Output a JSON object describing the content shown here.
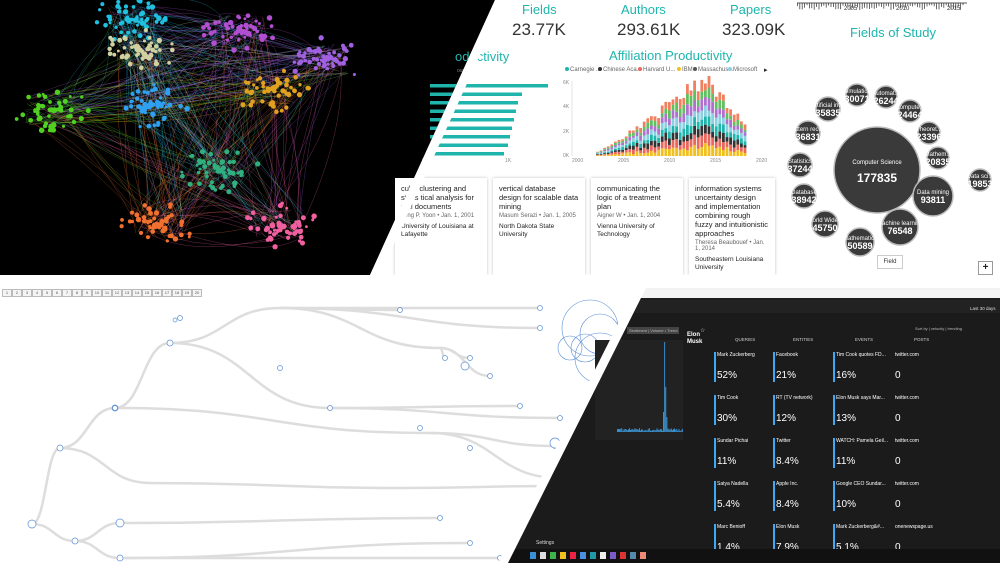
{
  "dashboard": {
    "kpis": [
      {
        "label": "Fields",
        "value": "23.77K"
      },
      {
        "label": "Authors",
        "value": "293.61K"
      },
      {
        "label": "Papers",
        "value": "323.09K"
      }
    ],
    "timeline_ticks": [
      "2005",
      "2010",
      "2015"
    ],
    "author_productivity_title": "oductivity",
    "author_productivity_axis": "ount",
    "author_axis_ticks": [
      "0K",
      "1K"
    ],
    "affiliation_title": "Affiliation Productivity",
    "affiliation_legend": [
      "Carnegie ...",
      "Chinese Aca...",
      "Harvard U...",
      "IBM",
      "Massachus...",
      "Microsoft"
    ],
    "affiliation_y_ticks": [
      "6K",
      "4K",
      "2K",
      "0K"
    ],
    "affiliation_x_ticks": [
      "2000",
      "2005",
      "2010",
      "2015",
      "2020"
    ],
    "fields_title": "Fields of Study",
    "field_label": "Field",
    "plus_label": "+",
    "cards": [
      {
        "title": "cube clustering and statis tical analysis for xml documents",
        "meta": "Jong P. Yoon • Jan. 1, 2001",
        "aff": "University of Louisiana at Lafayette"
      },
      {
        "title": "vertical database design for scalable data mining",
        "meta": "Masum Serazi • Jan. 1, 2005",
        "aff": "North Dakota State University"
      },
      {
        "title": "communicating the logic of a treatment plan",
        "meta": "Aigner W • Jan. 1, 2004",
        "aff": "Vienna University of Technology"
      },
      {
        "title": "information systems uncertainty design and implementation combining rough fuzzy and intuitionistic approaches",
        "meta": "Theresa Beaubouef • Jan. 1, 2014",
        "aff": "Southeastern Louisiana University"
      }
    ],
    "bubbles": [
      {
        "name": "Computer Science",
        "value": "177835"
      },
      {
        "name": "Data mining",
        "value": "93811"
      },
      {
        "name": "Machine learning",
        "value": "76548"
      },
      {
        "name": "Mathematics",
        "value": "50589"
      },
      {
        "name": "World Wide...",
        "value": "45750"
      },
      {
        "name": "Database",
        "value": "38942"
      },
      {
        "name": "Statistics",
        "value": "37244"
      },
      {
        "name": "Pattern reco...",
        "value": "36831"
      },
      {
        "name": "Artificial int...",
        "value": "35835"
      },
      {
        "name": "Simulation",
        "value": "30071"
      },
      {
        "name": "Automat...",
        "value": "26244"
      },
      {
        "name": "Compute...",
        "value": "24464"
      },
      {
        "name": "Theoret...",
        "value": "23396"
      },
      {
        "name": "Mathem...",
        "value": "20835"
      },
      {
        "name": "Data sci...",
        "value": "19853"
      }
    ]
  },
  "tree": {
    "pages": [
      "1",
      "2",
      "3",
      "4",
      "5",
      "6",
      "7",
      "8",
      "9",
      "10",
      "11",
      "12",
      "13",
      "14",
      "15",
      "16",
      "17",
      "18",
      "19",
      "20"
    ]
  },
  "dark": {
    "last_days": "Last 30 days",
    "person": "Elon Musk",
    "tabs": "Sentiment  |  Volume  •  Trend",
    "filters": "Sort by  |  velocity  |  trending",
    "columns": [
      "QUERIES",
      "ENTITIES",
      "EVENTS",
      "POSTS"
    ],
    "rows": [
      {
        "q": "Mark Zuckerberg",
        "qp": "52%",
        "e": "Facebook",
        "ep": "21%",
        "ev": "Tim Cook quotes FD...",
        "evp": "16%",
        "p": "twitter.com",
        "pp": "0"
      },
      {
        "q": "Tim Cook",
        "qp": "30%",
        "e": "RT (TV network)",
        "ep": "12%",
        "ev": "Elon Musk says Mar...",
        "evp": "13%",
        "p": "twitter.com",
        "pp": "0"
      },
      {
        "q": "Sundar Pichai",
        "qp": "11%",
        "e": "Twitter",
        "ep": "8.4%",
        "ev": "WATCH: Pamela Geil...",
        "evp": "11%",
        "p": "twitter.com",
        "pp": "0"
      },
      {
        "q": "Satya Nadella",
        "qp": "5.4%",
        "e": "Apple Inc.",
        "ep": "8.4%",
        "ev": "Google CEO Sundar...",
        "evp": "10%",
        "p": "twitter.com",
        "pp": "0"
      },
      {
        "q": "Marc Benioff",
        "qp": "1.4%",
        "e": "Elon Musk",
        "ep": "7.9%",
        "ev": "Mark Zuckerberg&#...",
        "evp": "5.1%",
        "p": "onenewspage.us",
        "pp": "0"
      }
    ],
    "settings": "Settings"
  },
  "colors": {
    "teal": "#1fb5ad",
    "dark_bubble": "#3a3a3a",
    "bar_blue": "#3fa9f5"
  }
}
